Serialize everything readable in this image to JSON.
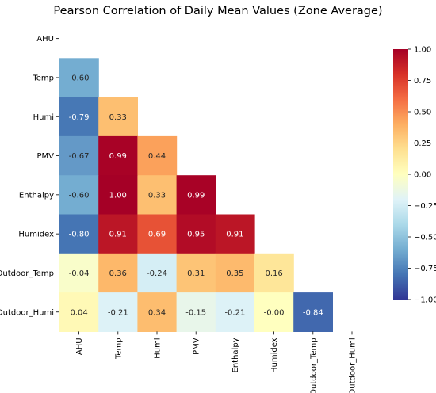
{
  "chart_data": {
    "type": "heatmap",
    "title": "Pearson Correlation of Daily Mean Values (Zone Average)",
    "xlabel": "",
    "ylabel": "",
    "row_labels": [
      "AHU",
      "Temp",
      "Humi",
      "PMV",
      "Enthalpy",
      "Humidex",
      "Outdoor_Temp",
      "Outdoor_Humi"
    ],
    "col_labels": [
      "AHU",
      "Temp",
      "Humi",
      "PMV",
      "Enthalpy",
      "Humidex",
      "Outdoor_Temp",
      "Outdoor_Humi"
    ],
    "mask": "upper triangle incl. diagonal",
    "values": [
      [
        null,
        null,
        null,
        null,
        null,
        null,
        null,
        null
      ],
      [
        -0.6,
        null,
        null,
        null,
        null,
        null,
        null,
        null
      ],
      [
        -0.79,
        0.33,
        null,
        null,
        null,
        null,
        null,
        null
      ],
      [
        -0.67,
        0.99,
        0.44,
        null,
        null,
        null,
        null,
        null
      ],
      [
        -0.6,
        1.0,
        0.33,
        0.99,
        null,
        null,
        null,
        null
      ],
      [
        -0.8,
        0.91,
        0.69,
        0.95,
        0.91,
        null,
        null,
        null
      ],
      [
        -0.04,
        0.36,
        -0.24,
        0.31,
        0.35,
        0.16,
        null,
        null
      ],
      [
        0.04,
        -0.21,
        0.34,
        -0.15,
        -0.21,
        -0.0,
        -0.84,
        null
      ]
    ],
    "cell_labels": [
      [
        null,
        null,
        null,
        null,
        null,
        null,
        null,
        null
      ],
      [
        "-0.60",
        null,
        null,
        null,
        null,
        null,
        null,
        null
      ],
      [
        "-0.79",
        "0.33",
        null,
        null,
        null,
        null,
        null,
        null
      ],
      [
        "-0.67",
        "0.99",
        "0.44",
        null,
        null,
        null,
        null,
        null
      ],
      [
        "-0.60",
        "1.00",
        "0.33",
        "0.99",
        null,
        null,
        null,
        null
      ],
      [
        "-0.80",
        "0.91",
        "0.69",
        "0.95",
        "0.91",
        null,
        null,
        null
      ],
      [
        "-0.04",
        "0.36",
        "-0.24",
        "0.31",
        "0.35",
        "0.16",
        null,
        null
      ],
      [
        "0.04",
        "-0.21",
        "0.34",
        "-0.15",
        "-0.21",
        "-0.00",
        "-0.84",
        null
      ]
    ],
    "colormap": "RdYlBu_r",
    "vmin": -1.0,
    "vmax": 1.0,
    "colorbar_ticks": [
      1.0,
      0.75,
      0.5,
      0.25,
      0.0,
      -0.25,
      -0.5,
      -0.75,
      -1.0
    ],
    "colorbar_tick_labels": [
      "1.00",
      "0.75",
      "0.50",
      "0.25",
      "0.00",
      "−0.25",
      "−0.50",
      "−0.75",
      "−1.00"
    ],
    "grid": false,
    "legend": "colorbar-right"
  }
}
